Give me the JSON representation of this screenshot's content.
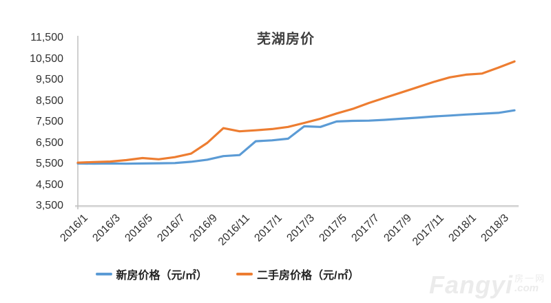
{
  "chart": {
    "title": "芜湖房价"
  },
  "legend": {
    "items": [
      {
        "label": "新房价格（元/㎡）",
        "color": "#5B9BD5"
      },
      {
        "label": "二手房价格（元/㎡）",
        "color": "#ED7D31"
      }
    ]
  },
  "watermark": {
    "brand": "Fangyi",
    "cjk": "房一网",
    "com": ".com"
  },
  "colors": {
    "axis": "#bfbfbf",
    "axis_shadow": "#e9e9e9",
    "new_home_line": "#5B9BD5",
    "second_hand_line": "#ED7D31"
  },
  "chart_data": {
    "type": "line",
    "title": "芜湖房价",
    "x": [
      "2016/1",
      "2016/2",
      "2016/3",
      "2016/4",
      "2016/5",
      "2016/6",
      "2016/7",
      "2016/8",
      "2016/9",
      "2016/10",
      "2016/11",
      "2016/12",
      "2017/1",
      "2017/2",
      "2017/3",
      "2017/4",
      "2017/5",
      "2017/6",
      "2017/7",
      "2017/8",
      "2017/9",
      "2017/10",
      "2017/11",
      "2017/12",
      "2018/1",
      "2018/2",
      "2018/3",
      "2018/4"
    ],
    "xtick_labels": [
      "2016/1",
      "2016/3",
      "2016/5",
      "2016/7",
      "2016/9",
      "2016/11",
      "2017/1",
      "2017/3",
      "2017/5",
      "2017/7",
      "2017/9",
      "2017/11",
      "2018/1",
      "2018/3"
    ],
    "series": [
      {
        "name": "新房价格（元/㎡）",
        "color": "#5B9BD5",
        "values": [
          5520,
          5510,
          5520,
          5510,
          5520,
          5530,
          5540,
          5600,
          5700,
          5870,
          5920,
          6580,
          6620,
          6700,
          7290,
          7260,
          7520,
          7550,
          7560,
          7600,
          7650,
          7700,
          7760,
          7800,
          7850,
          7890,
          7930,
          8050
        ]
      },
      {
        "name": "二手房价格（元/㎡）",
        "color": "#ED7D31",
        "values": [
          5560,
          5590,
          5610,
          5680,
          5780,
          5720,
          5820,
          5990,
          6500,
          7200,
          7050,
          7100,
          7160,
          7260,
          7450,
          7650,
          7900,
          8120,
          8400,
          8650,
          8900,
          9150,
          9400,
          9620,
          9750,
          9800,
          10080,
          10380
        ]
      }
    ],
    "ylim": [
      3500,
      11500
    ],
    "ytick_step": 1000,
    "ytick_labels": [
      "3,500",
      "4,500",
      "5,500",
      "6,500",
      "7,500",
      "8,500",
      "9,500",
      "10,500",
      "11,500"
    ],
    "grid": false,
    "legend_position": "bottom",
    "xlabel": "",
    "ylabel": ""
  }
}
